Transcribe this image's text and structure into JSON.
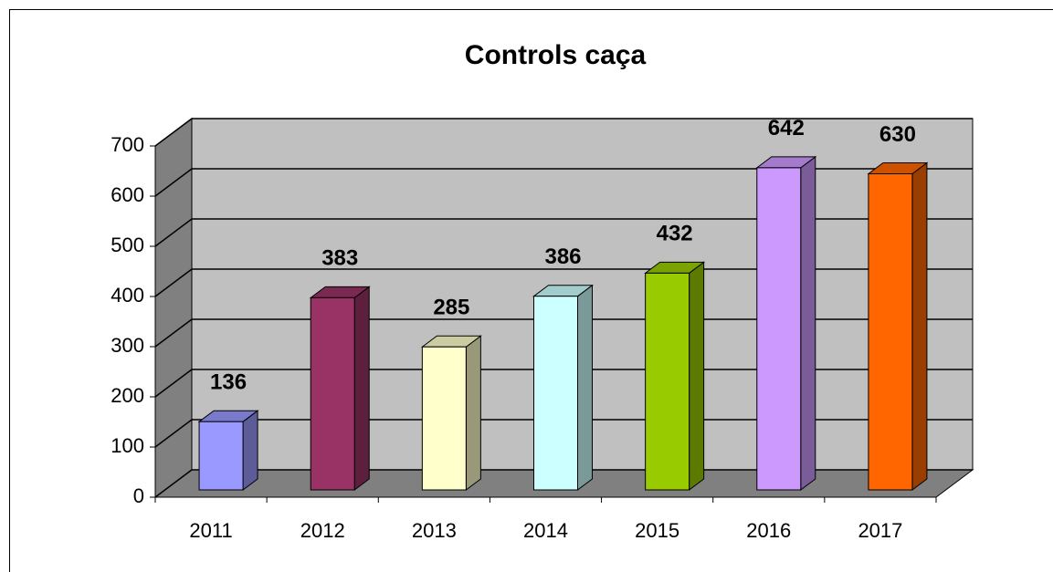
{
  "chart_data": {
    "type": "bar3d",
    "title": "Controls caça",
    "categories": [
      "2011",
      "2012",
      "2013",
      "2014",
      "2015",
      "2016",
      "2017"
    ],
    "values": [
      136,
      383,
      285,
      386,
      432,
      642,
      630
    ],
    "colors": [
      "#9999ff",
      "#993366",
      "#ffffcc",
      "#ccffff",
      "#99cc00",
      "#cc99ff",
      "#ff6600"
    ],
    "ylim": [
      0,
      700
    ],
    "yticks": [
      0,
      100,
      200,
      300,
      400,
      500,
      600,
      700
    ],
    "grid": true
  }
}
